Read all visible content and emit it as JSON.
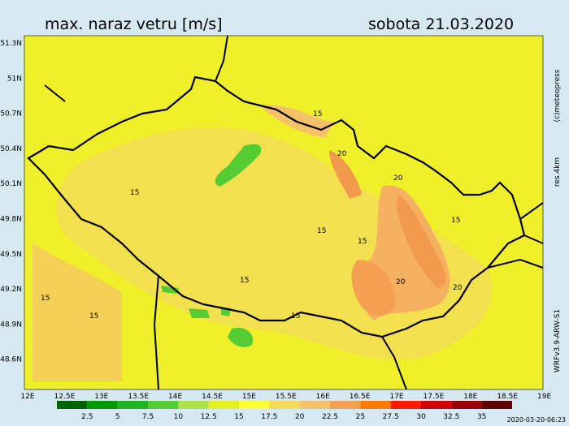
{
  "header": {
    "title": "max. naraz vetru [m/s]",
    "date": "sobota 21.03.2020"
  },
  "lat_labels": [
    "51.3N",
    "51N",
    "50.7N",
    "50.4N",
    "50.1N",
    "49.8N",
    "49.5N",
    "49.2N",
    "48.9N",
    "48.6N"
  ],
  "lon_labels": [
    "12E",
    "12.5E",
    "13E",
    "13.5E",
    "14E",
    "14.5E",
    "15E",
    "15.5E",
    "16E",
    "16.5E",
    "17E",
    "17.5E",
    "18E",
    "18.5E",
    "19E"
  ],
  "legend": {
    "labels": [
      "2.5",
      "5",
      "7.5",
      "10",
      "12.5",
      "15",
      "17.5",
      "20",
      "22.5",
      "25",
      "27.5",
      "30",
      "32.5",
      "35"
    ],
    "colors": [
      "#006400",
      "#009a00",
      "#1fb51f",
      "#55cc33",
      "#aee24a",
      "#e6f020",
      "#ffff33",
      "#f4dc58",
      "#f5c26a",
      "#f5a050",
      "#ff7a00",
      "#ff1a00",
      "#d20000",
      "#9a0000",
      "#600000"
    ]
  },
  "contour_labels": [
    "15",
    "15",
    "20",
    "15",
    "20",
    "15",
    "15",
    "15",
    "15",
    "15",
    "20",
    "20",
    "15"
  ],
  "side": {
    "copyright": "(c)meteopress",
    "resolution": "res.4km",
    "model": "WRFv3.9-ARW-S1",
    "timestamp": "2020-03-20-06:23"
  }
}
